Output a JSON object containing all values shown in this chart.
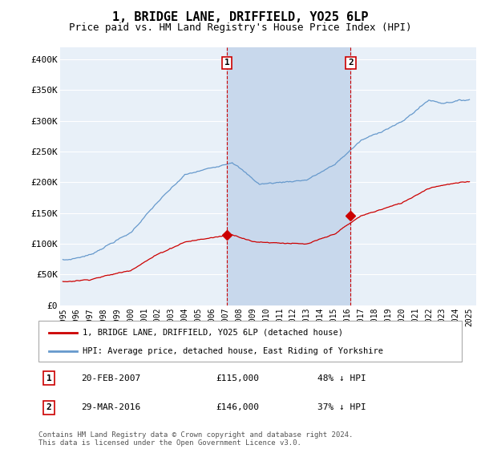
{
  "title": "1, BRIDGE LANE, DRIFFIELD, YO25 6LP",
  "subtitle": "Price paid vs. HM Land Registry's House Price Index (HPI)",
  "title_fontsize": 11,
  "subtitle_fontsize": 9,
  "ylabel_ticks": [
    "£0",
    "£50K",
    "£100K",
    "£150K",
    "£200K",
    "£250K",
    "£300K",
    "£350K",
    "£400K"
  ],
  "ylabel_values": [
    0,
    50000,
    100000,
    150000,
    200000,
    250000,
    300000,
    350000,
    400000
  ],
  "ylim": [
    0,
    420000
  ],
  "xlim_start": 1994.8,
  "xlim_end": 2025.5,
  "background_color": "#ffffff",
  "plot_bg_color": "#e8f0f8",
  "shade_color": "#c8d8ec",
  "grid_color": "#ffffff",
  "red_line_color": "#cc0000",
  "blue_line_color": "#6699cc",
  "sale1_x": 2007.12,
  "sale1_y": 115000,
  "sale1_label": "1",
  "sale1_date": "20-FEB-2007",
  "sale1_price": "£115,000",
  "sale1_hpi": "48% ↓ HPI",
  "sale2_x": 2016.24,
  "sale2_y": 146000,
  "sale2_label": "2",
  "sale2_date": "29-MAR-2016",
  "sale2_price": "£146,000",
  "sale2_hpi": "37% ↓ HPI",
  "legend_line1": "1, BRIDGE LANE, DRIFFIELD, YO25 6LP (detached house)",
  "legend_line2": "HPI: Average price, detached house, East Riding of Yorkshire",
  "footer": "Contains HM Land Registry data © Crown copyright and database right 2024.\nThis data is licensed under the Open Government Licence v3.0.",
  "xticks": [
    1995,
    1996,
    1997,
    1998,
    1999,
    2000,
    2001,
    2002,
    2003,
    2004,
    2005,
    2006,
    2007,
    2008,
    2009,
    2010,
    2011,
    2012,
    2013,
    2014,
    2015,
    2016,
    2017,
    2018,
    2019,
    2020,
    2021,
    2022,
    2023,
    2024,
    2025
  ]
}
